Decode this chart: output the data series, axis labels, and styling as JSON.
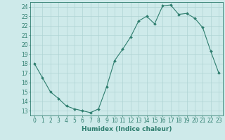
{
  "x": [
    0,
    1,
    2,
    3,
    4,
    5,
    6,
    7,
    8,
    9,
    10,
    11,
    12,
    13,
    14,
    15,
    16,
    17,
    18,
    19,
    20,
    21,
    22,
    23
  ],
  "y": [
    18.0,
    16.5,
    15.0,
    14.3,
    13.5,
    13.2,
    13.0,
    12.8,
    13.2,
    15.5,
    18.3,
    19.5,
    20.8,
    22.5,
    23.0,
    22.2,
    24.1,
    24.2,
    23.2,
    23.3,
    22.8,
    21.8,
    19.3,
    17.0
  ],
  "xlim": [
    -0.5,
    23.5
  ],
  "ylim": [
    12.5,
    24.5
  ],
  "yticks": [
    13,
    14,
    15,
    16,
    17,
    18,
    19,
    20,
    21,
    22,
    23,
    24
  ],
  "xticks": [
    0,
    1,
    2,
    3,
    4,
    5,
    6,
    7,
    8,
    9,
    10,
    11,
    12,
    13,
    14,
    15,
    16,
    17,
    18,
    19,
    20,
    21,
    22,
    23
  ],
  "xlabel": "Humidex (Indice chaleur)",
  "line_color": "#2e7d6e",
  "marker_color": "#2e7d6e",
  "bg_color": "#ceeaea",
  "grid_color": "#afd4d4",
  "axis_color": "#2e7d6e",
  "text_color": "#2e7d6e",
  "font_size": 5.5,
  "xlabel_fontsize": 6.5
}
